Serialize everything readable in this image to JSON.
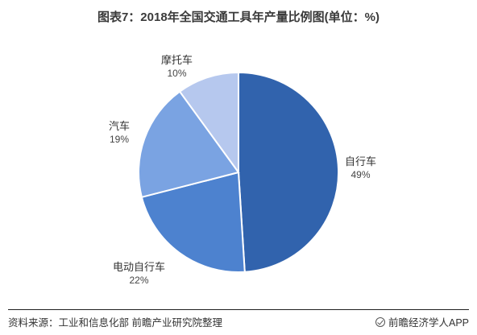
{
  "chart_data": {
    "type": "pie",
    "title": "图表7：2018年全国交通工具年产量比例图(单位：%)",
    "slices": [
      {
        "label": "自行车",
        "value": 49,
        "value_label": "49%",
        "color": "#3163ad"
      },
      {
        "label": "电动自行车",
        "value": 22,
        "value_label": "22%",
        "color": "#4d82cf"
      },
      {
        "label": "汽车",
        "value": 19,
        "value_label": "19%",
        "color": "#7aa3e2"
      },
      {
        "label": "摩托车",
        "value": 10,
        "value_label": "10%",
        "color": "#b6c8ee"
      }
    ],
    "start": "12 o'clock",
    "direction": "clockwise"
  },
  "footer": {
    "source": "资料来源：工业和信息化部 前瞻产业研究院整理",
    "brand": "前瞻经济学人APP"
  }
}
